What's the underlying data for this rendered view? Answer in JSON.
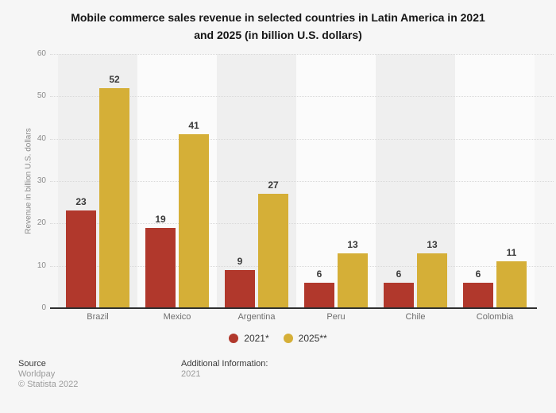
{
  "header": {
    "title_lines": [
      "Mobile commerce sales revenue in selected countries in Latin America in 2021",
      "and 2025 (in billion U.S. dollars)"
    ]
  },
  "chart_data": {
    "type": "bar",
    "title": "Mobile commerce sales revenue in selected countries in Latin America in 2021 and 2025 (in billion U.S. dollars)",
    "categories": [
      "Brazil",
      "Mexico",
      "Argentina",
      "Peru",
      "Chile",
      "Colombia"
    ],
    "series": [
      {
        "name": "2021*",
        "color": "#b1382c",
        "values": [
          23,
          19,
          9,
          6,
          6,
          6
        ]
      },
      {
        "name": "2025**",
        "color": "#d5af37",
        "values": [
          52,
          41,
          27,
          13,
          13,
          11
        ]
      }
    ],
    "xlabel": "",
    "ylabel": "Revenue in billion U.S. dollars",
    "ylim": [
      0,
      60
    ],
    "yticks": [
      0,
      10,
      20,
      30,
      40,
      50,
      60
    ],
    "grid": true,
    "legend_position": "bottom"
  },
  "footer": {
    "source_label": "Source",
    "source_value": "Worldpay",
    "copyright": "© Statista 2022",
    "additional_label": "Additional Information:",
    "additional_value": "2021"
  },
  "colors": {
    "background": "#f6f6f6",
    "band_odd": "#efefef",
    "band_even": "#fbfbfb",
    "gridline": "#d9d9d9",
    "axis_line": "#2f2f2f",
    "value_label": "#3a3a3a",
    "tick_label": "#8a8a8a",
    "series_2021": "#b1382c",
    "series_2025": "#d5af37"
  }
}
